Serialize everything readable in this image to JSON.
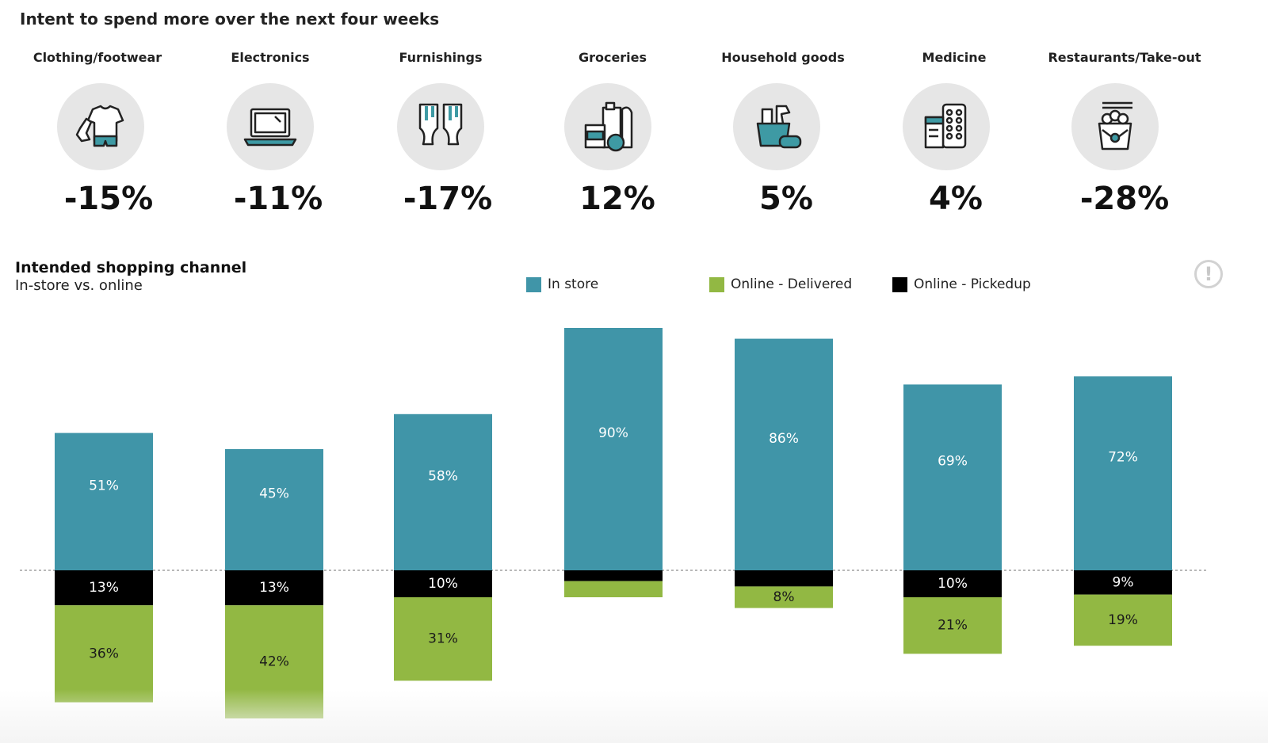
{
  "header": {
    "title": "Intent to spend more over the next four weeks"
  },
  "categories": [
    {
      "label": "Clothing/footwear",
      "icon": "clothing-icon",
      "change": "-15%"
    },
    {
      "label": "Electronics",
      "icon": "laptop-icon",
      "change": "-11%"
    },
    {
      "label": "Furnishings",
      "icon": "curtains-icon",
      "change": "-17%"
    },
    {
      "label": "Groceries",
      "icon": "groceries-icon",
      "change": "12%"
    },
    {
      "label": "Household goods",
      "icon": "cleaning-icon",
      "change": "5%"
    },
    {
      "label": "Medicine",
      "icon": "medicine-icon",
      "change": "4%"
    },
    {
      "label": "Restaurants/Take-out",
      "icon": "takeout-icon",
      "change": "-28%"
    }
  ],
  "colors": {
    "in_store": "#4095a8",
    "online_delivered": "#92b843",
    "online_pickedup": "#000000",
    "icon_teal": "#3e9aa4",
    "icon_bg": "#e6e6e6"
  },
  "chart_data": {
    "type": "bar",
    "title": "Intended shopping channel",
    "subtitle": "In-store vs. online",
    "categories": [
      "Clothing/footwear",
      "Electronics",
      "Furnishings",
      "Groceries",
      "Household goods",
      "Medicine",
      "Restaurants/Take-out"
    ],
    "series": [
      {
        "name": "In store",
        "values": [
          51,
          45,
          58,
          90,
          86,
          69,
          72
        ],
        "labels": [
          "51%",
          "45%",
          "58%",
          "90%",
          "86%",
          "69%",
          "72%"
        ]
      },
      {
        "name": "Online - Delivered",
        "values": [
          36,
          42,
          31,
          6,
          8,
          21,
          19
        ],
        "labels": [
          "36%",
          "42%",
          "31%",
          "",
          "8%",
          "21%",
          "19%"
        ]
      },
      {
        "name": "Online - Pickedup",
        "values": [
          13,
          13,
          10,
          4,
          6,
          10,
          9
        ],
        "labels": [
          "13%",
          "13%",
          "10%",
          "",
          "",
          "10%",
          "9%"
        ]
      }
    ],
    "baseline": "in store above, online below",
    "legend": "top",
    "grid": false
  }
}
